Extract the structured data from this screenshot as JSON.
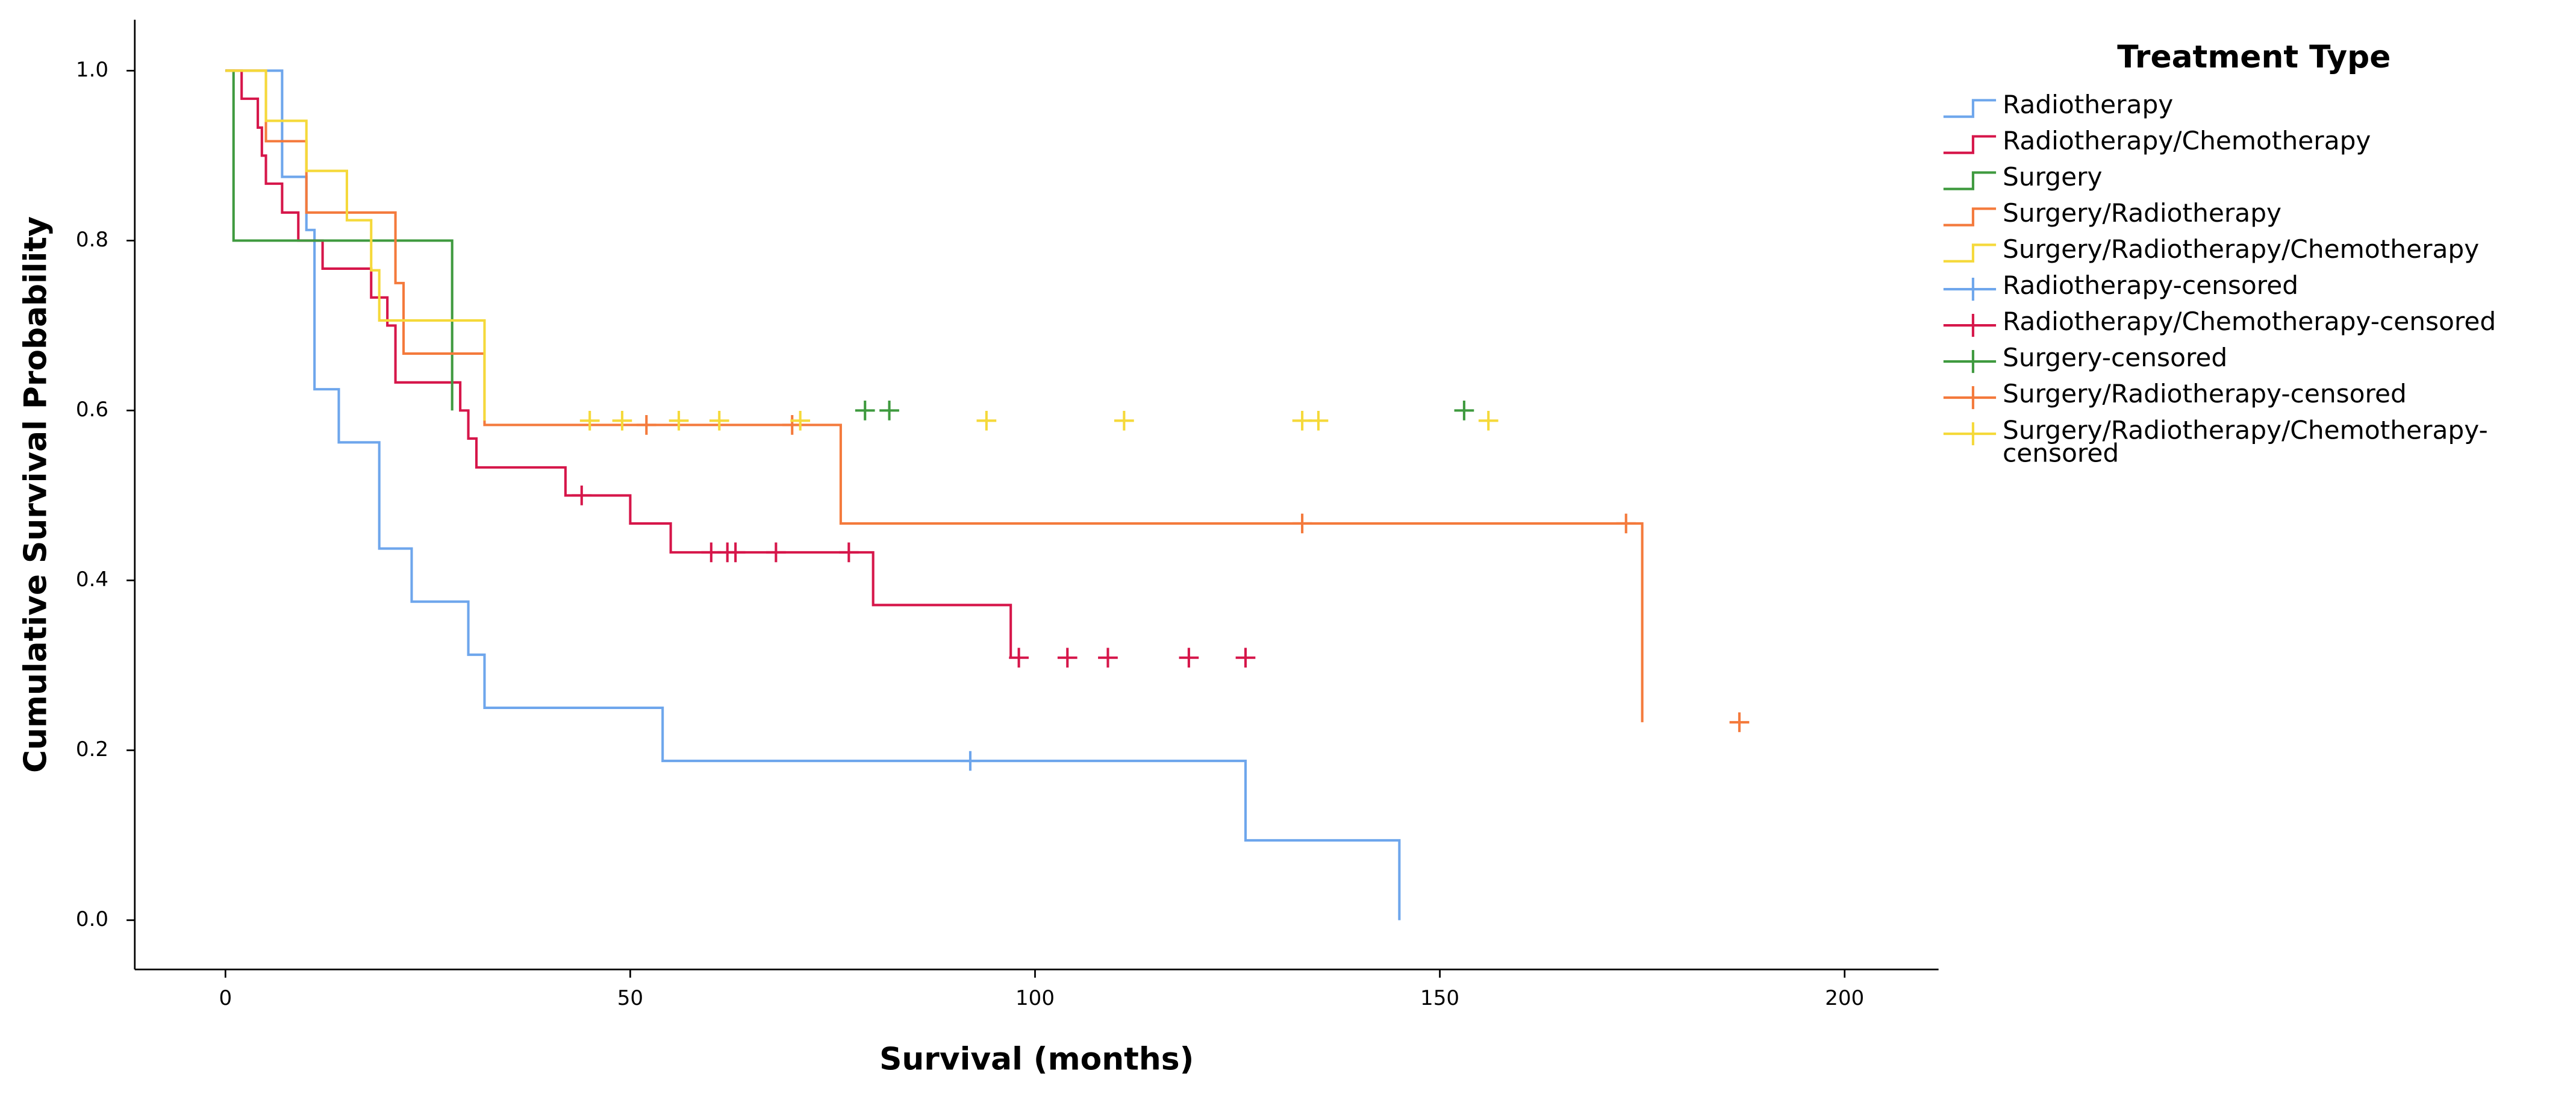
{
  "chart_data": {
    "type": "kaplan-meier",
    "x_label": "Survival (months)",
    "y_label": "Cumulative Survival Probability",
    "legend_title": "Treatment Type",
    "legend": "right",
    "xlim": [
      -11.2,
      211.6
    ],
    "ylim": [
      -0.058,
      1.06
    ],
    "xticks": [
      0,
      50,
      100,
      150,
      200
    ],
    "yticks": [
      {
        "value": 0,
        "label": "0.0"
      },
      0.2,
      0.4,
      0.6,
      0.8,
      {
        "value": 1,
        "label": "1.0"
      }
    ],
    "series": [
      {
        "name": "Radiotherapy",
        "color": "#6ea6ec",
        "style": "step",
        "x": [
          0,
          7,
          10,
          11,
          14,
          19,
          23,
          30,
          32,
          54,
          126,
          145
        ],
        "values": [
          1,
          0.875,
          0.8125,
          0.625,
          0.5625,
          0.4375,
          0.375,
          0.3125,
          0.25,
          0.1875,
          0.094,
          0
        ]
      },
      {
        "name": "Radiotherapy/Chemotherapy",
        "color": "#d6164a",
        "style": "step",
        "x": [
          0,
          2,
          4,
          4.5,
          5,
          7,
          9,
          12,
          18,
          20,
          21,
          29,
          30,
          31,
          42,
          50,
          55,
          80,
          97
        ],
        "values": [
          1,
          0.967,
          0.933,
          0.9,
          0.867,
          0.833,
          0.8,
          0.767,
          0.733,
          0.7,
          0.633,
          0.6,
          0.567,
          0.533,
          0.5,
          0.467,
          0.433,
          0.371,
          0.309
        ]
      },
      {
        "name": "Surgery",
        "color": "#3f9a3f",
        "style": "step",
        "x": [
          0,
          1,
          28
        ],
        "values": [
          1,
          0.8,
          0.6
        ]
      },
      {
        "name": "Surgery/Radiotherapy",
        "color": "#f47a3c",
        "style": "step",
        "x": [
          0,
          5,
          10,
          21,
          22,
          32,
          76,
          175
        ],
        "values": [
          1,
          0.917,
          0.833,
          0.75,
          0.667,
          0.583,
          0.467,
          0.233
        ]
      },
      {
        "name": "Surgery/Radiotherapy/Chemotherapy",
        "color": "#f5d93a",
        "style": "step",
        "x": [
          0,
          5,
          10,
          15,
          18,
          19,
          32
        ],
        "values": [
          1,
          0.941,
          0.882,
          0.824,
          0.765,
          0.706,
          0.588
        ]
      },
      {
        "name": "Radiotherapy-censored",
        "color": "#6ea6ec",
        "style": "censored",
        "x": [
          92
        ],
        "values": [
          0.1875
        ]
      },
      {
        "name": "Radiotherapy/Chemotherapy-censored",
        "color": "#d6164a",
        "style": "censored",
        "x": [
          44,
          60,
          62,
          63,
          68,
          77,
          98,
          104,
          109,
          119,
          126
        ],
        "values": [
          0.5,
          0.433,
          0.433,
          0.433,
          0.433,
          0.433,
          0.309,
          0.309,
          0.309,
          0.309,
          0.309
        ]
      },
      {
        "name": "Surgery-censored",
        "color": "#3f9a3f",
        "style": "censored",
        "x": [
          79,
          82,
          153
        ],
        "values": [
          0.6,
          0.6,
          0.6
        ]
      },
      {
        "name": "Surgery/Radiotherapy-censored",
        "color": "#f47a3c",
        "style": "censored",
        "x": [
          52,
          70,
          133,
          173,
          187
        ],
        "values": [
          0.583,
          0.583,
          0.467,
          0.467,
          0.233
        ]
      },
      {
        "name": "Surgery/Radiotherapy/Chemotherapy-censored",
        "color": "#f5d93a",
        "style": "censored",
        "x": [
          45,
          49,
          56,
          61,
          71,
          94,
          111,
          133,
          135,
          156
        ],
        "values": [
          0.588,
          0.588,
          0.588,
          0.588,
          0.588,
          0.588,
          0.588,
          0.588,
          0.588,
          0.588
        ]
      }
    ]
  }
}
